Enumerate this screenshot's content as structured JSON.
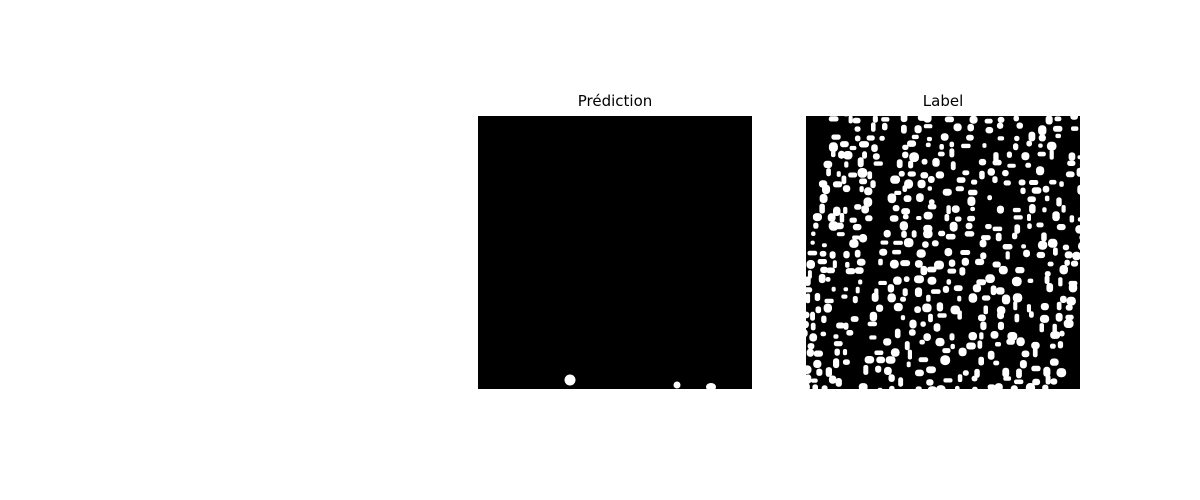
{
  "figure": {
    "background_color": "#ffffff",
    "panels": [
      {
        "title": "Prédiction",
        "image": "binary segmentation mask",
        "mask_background": "#000000",
        "mask_foreground": "#ffffff"
      },
      {
        "title": "Label",
        "image": "binary segmentation mask",
        "mask_background": "#000000",
        "mask_foreground": "#ffffff"
      }
    ]
  }
}
